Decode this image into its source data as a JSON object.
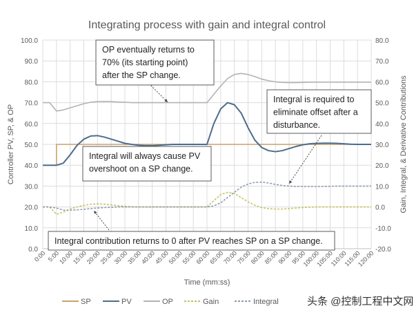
{
  "chart_data": {
    "type": "line",
    "title": "Integrating process with gain and integral control",
    "xlabel": "Time (mm:ss)",
    "ylabel": "Controller PV, SP, & OP",
    "y2label": "Gain, Integral, & Derivative Contributions",
    "ylim": [
      0,
      100
    ],
    "y2lim": [
      -20,
      80
    ],
    "yticks": [
      "0.0",
      "10.0",
      "20.0",
      "30.0",
      "40.0",
      "50.0",
      "60.0",
      "70.0",
      "80.0",
      "90.0",
      "100.0"
    ],
    "y2ticks": [
      "-20.0",
      "-10.0",
      "0.0",
      "10.0",
      "20.0",
      "30.0",
      "40.0",
      "50.0",
      "60.0",
      "70.0",
      "80.0"
    ],
    "xlim_minutes": [
      0,
      120
    ],
    "xticks": [
      "0:00",
      "5:00",
      "10:00",
      "15:00",
      "20:00",
      "25:00",
      "30:00",
      "35:00",
      "40:00",
      "45:00",
      "50:00",
      "55:00",
      "60:00",
      "65:00",
      "70:00",
      "75:00",
      "80:00",
      "85:00",
      "90:00",
      "95:00",
      "100:00",
      "105:00",
      "110:00",
      "115:00",
      "120:00"
    ],
    "grid": true,
    "legend": "bottom",
    "x_minutes": [
      0,
      2.5,
      5,
      7.5,
      10,
      12.5,
      15,
      17.5,
      20,
      22.5,
      25,
      27.5,
      30,
      32.5,
      35,
      37.5,
      40,
      42.5,
      45,
      47.5,
      50,
      52.5,
      55,
      57.5,
      60,
      62.5,
      65,
      67.5,
      70,
      72.5,
      75,
      77.5,
      80,
      82.5,
      85,
      87.5,
      90,
      92.5,
      95,
      97.5,
      100,
      102.5,
      105,
      107.5,
      110,
      112.5,
      115,
      117.5,
      120
    ],
    "series": [
      {
        "name": "SP",
        "axis": "left",
        "color": "#c9a26b",
        "dash": false,
        "step": true,
        "values": [
          40,
          40,
          50,
          50,
          50,
          50,
          50,
          50,
          50,
          50,
          50,
          50,
          50,
          50,
          50,
          50,
          50,
          50,
          50,
          50,
          50,
          50,
          50,
          50,
          50,
          50,
          50,
          50,
          50,
          50,
          50,
          50,
          50,
          50,
          50,
          50,
          50,
          50,
          50,
          50,
          50,
          50,
          50,
          50,
          50,
          50,
          50,
          50,
          50
        ]
      },
      {
        "name": "PV",
        "axis": "left",
        "color": "#4d6c8c",
        "dash": false,
        "values": [
          40,
          40,
          40,
          41,
          45,
          49.5,
          52.5,
          54,
          54.2,
          53.5,
          52.5,
          51.5,
          50.5,
          50,
          49.6,
          49.4,
          49.4,
          49.6,
          49.8,
          50,
          50,
          50,
          50,
          50,
          50,
          60,
          67,
          70,
          69,
          65,
          58,
          52,
          48.5,
          47,
          46.5,
          47,
          48,
          49,
          49.8,
          50.3,
          50.5,
          50.6,
          50.6,
          50.5,
          50.3,
          50.1,
          50,
          50,
          50
        ]
      },
      {
        "name": "OP",
        "axis": "left",
        "color": "#b3b3b3",
        "dash": false,
        "values": [
          70,
          70,
          66,
          66.5,
          67.5,
          68.5,
          69.5,
          70.2,
          70.5,
          70.6,
          70.5,
          70.3,
          70.2,
          70,
          70,
          70,
          70,
          70,
          70,
          70,
          70,
          70,
          70,
          70,
          70,
          74,
          78,
          81.5,
          83.5,
          84,
          83.5,
          82.5,
          81.3,
          80.5,
          80,
          79.7,
          79.6,
          79.6,
          79.7,
          79.8,
          79.8,
          79.8,
          79.8,
          79.8,
          79.8,
          79.8,
          79.8,
          79.8,
          79.8
        ]
      },
      {
        "name": "Gain",
        "axis": "right",
        "color": "#c8c262",
        "dash": true,
        "values": [
          0,
          0,
          -3.5,
          -2.5,
          -1,
          0,
          0.8,
          1.3,
          1.5,
          1.3,
          1,
          0.6,
          0.3,
          0.1,
          0,
          0,
          0,
          0,
          0,
          0,
          0,
          0,
          0,
          0,
          0,
          3,
          6,
          7,
          6.5,
          4.5,
          2.5,
          0.8,
          -0.3,
          -0.8,
          -1,
          -1,
          -0.8,
          -0.5,
          -0.3,
          -0.1,
          0,
          0,
          0,
          0,
          0,
          0,
          0,
          0,
          0
        ]
      },
      {
        "name": "Integral",
        "axis": "right",
        "color": "#8d9bb1",
        "dash": true,
        "values": [
          0,
          0,
          -0.5,
          -1.5,
          -1.6,
          -1.4,
          -1.1,
          -0.8,
          -0.5,
          -0.3,
          -0.15,
          0,
          0,
          0,
          0,
          0,
          0,
          0,
          0,
          0,
          0,
          0,
          0,
          0,
          0,
          0.5,
          2,
          4.5,
          7,
          9.5,
          11,
          11.8,
          11.9,
          11.5,
          10.8,
          10.3,
          10,
          9.8,
          9.8,
          9.8,
          9.8,
          9.8,
          9.9,
          10,
          10,
          10,
          10,
          10,
          10
        ]
      }
    ],
    "annotations": [
      "OP eventually returns to|70% (its starting point)|after the SP change.",
      "Integral is required to|eliminate offset after a|disturbance.",
      "Integral will always cause PV|overshoot on a SP change.",
      "Integral contribution returns to 0 after PV reaches SP on a SP change."
    ]
  },
  "watermark": "头条 @控制工程中文网"
}
